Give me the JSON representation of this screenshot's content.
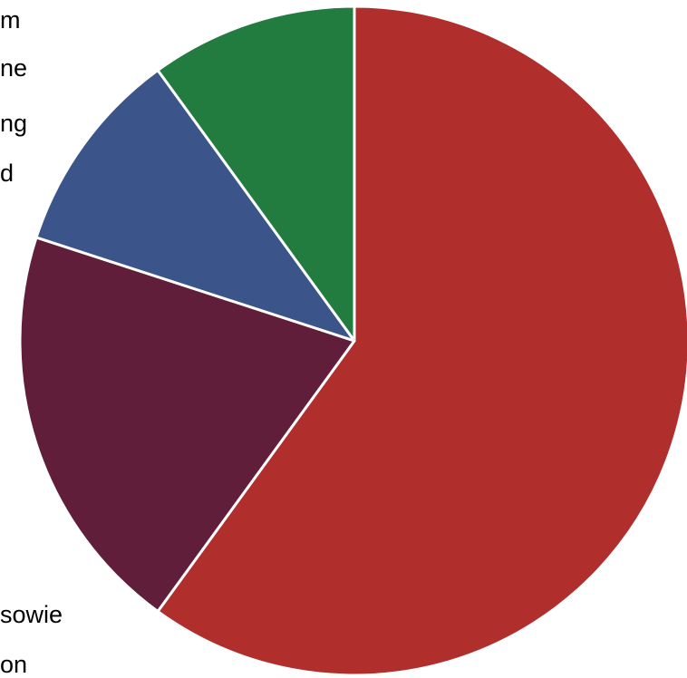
{
  "chart_data": {
    "type": "pie",
    "slices": [
      {
        "label": "",
        "value": 60,
        "color": "#B02E2C"
      },
      {
        "label": "",
        "value": 20,
        "color": "#611E3A"
      },
      {
        "label": "",
        "value": 10,
        "color": "#3B548A"
      },
      {
        "label": "",
        "value": 10,
        "color": "#237C3F"
      }
    ],
    "visible_label_fragments": [
      "m",
      "ne",
      "ng",
      "d",
      "sowie",
      "on"
    ],
    "legend": "none",
    "grid": false
  }
}
